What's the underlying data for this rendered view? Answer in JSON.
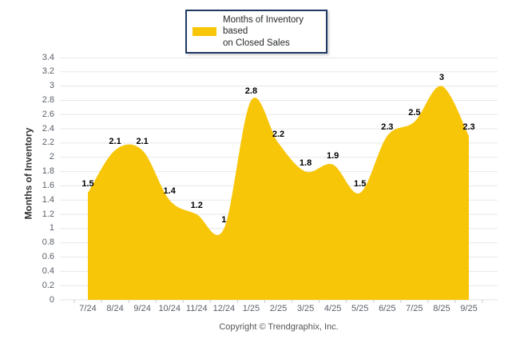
{
  "legend": {
    "line1": "Months of Inventory based",
    "line2": "on Closed Sales"
  },
  "footer": "Copyright © Trendgraphix, Inc.",
  "colors": {
    "area": "#F8C608",
    "grid": "#E7E7E7",
    "axis_line": "#E0E0E0",
    "axis_tick": "#CCCCCC",
    "axis_text": "#5A6069",
    "data_label": "#000000",
    "legend_border": "#1F3864",
    "legend_text": "#26282B",
    "footer_text": "#555555"
  },
  "chart_data": {
    "type": "area",
    "title": "",
    "categories": [
      "7/24",
      "8/24",
      "9/24",
      "10/24",
      "11/24",
      "12/24",
      "1/25",
      "2/25",
      "3/25",
      "4/25",
      "5/25",
      "6/25",
      "7/25",
      "8/25",
      "9/25"
    ],
    "series": [
      {
        "name": "Months of Inventory based on Closed Sales",
        "values": [
          1.5,
          2.1,
          2.1,
          1.4,
          1.2,
          1,
          2.8,
          2.2,
          1.8,
          1.9,
          1.5,
          2.3,
          2.5,
          3,
          2.3
        ]
      }
    ],
    "xlabel": "",
    "ylabel": "Months of Inventory",
    "ylim": [
      0,
      3.4
    ],
    "ytick_step": 0.2,
    "grid": true,
    "smooth": true,
    "legend_position": "top-center",
    "data_labels_visible": true
  }
}
